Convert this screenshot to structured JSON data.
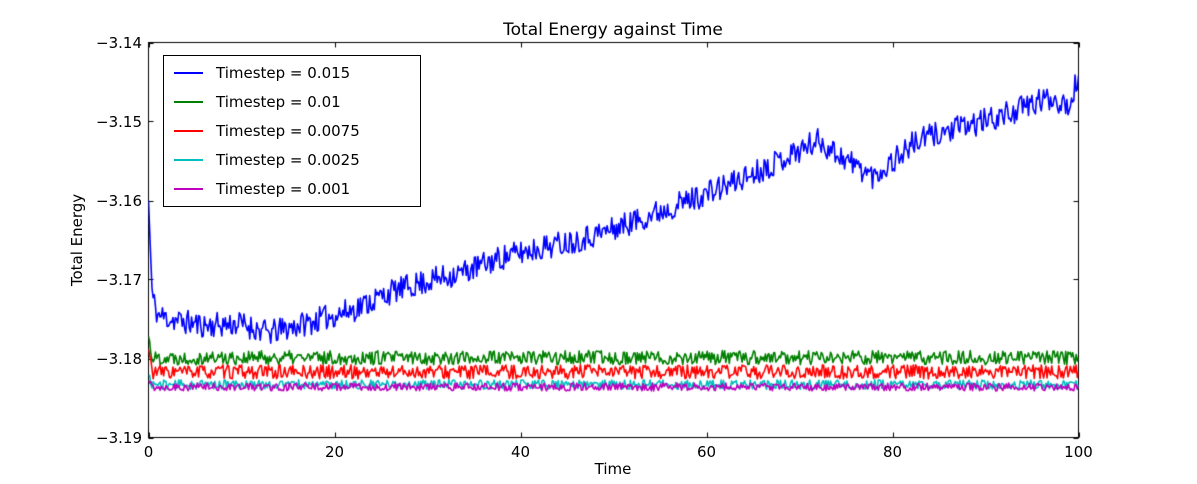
{
  "chart_data": {
    "type": "line",
    "title": "Total Energy against Time",
    "xlabel": "Time",
    "ylabel": "Total Energy",
    "xlim": [
      0,
      100
    ],
    "ylim": [
      -3.19,
      -3.14
    ],
    "xticks": [
      0,
      20,
      40,
      60,
      80,
      100
    ],
    "xtick_labels": [
      "0",
      "20",
      "40",
      "60",
      "80",
      "100"
    ],
    "yticks": [
      -3.14,
      -3.15,
      -3.16,
      -3.17,
      -3.18,
      -3.19
    ],
    "ytick_labels": [
      "−3.14",
      "−3.15",
      "−3.16",
      "−3.17",
      "−3.18",
      "−3.19"
    ],
    "grid": false,
    "legend_position": "upper left",
    "tick_direction": "in",
    "axis_color": "#000000",
    "background_color": "#ffffff",
    "series": [
      {
        "name": "Timestep = 0.015",
        "color": "#0000ff",
        "noise": 0.0016,
        "seed": 11,
        "points": 800,
        "trend": [
          [
            0,
            -3.16
          ],
          [
            0.4,
            -3.1722
          ],
          [
            1,
            -3.1745
          ],
          [
            3,
            -3.1752
          ],
          [
            6,
            -3.1758
          ],
          [
            10,
            -3.1756
          ],
          [
            13,
            -3.1768
          ],
          [
            16,
            -3.1758
          ],
          [
            18,
            -3.1752
          ],
          [
            22,
            -3.1738
          ],
          [
            26,
            -3.1716
          ],
          [
            30,
            -3.1702
          ],
          [
            34,
            -3.169
          ],
          [
            38,
            -3.1672
          ],
          [
            42,
            -3.166
          ],
          [
            46,
            -3.165
          ],
          [
            50,
            -3.1636
          ],
          [
            54,
            -3.1618
          ],
          [
            58,
            -3.16
          ],
          [
            62,
            -3.1582
          ],
          [
            66,
            -3.156
          ],
          [
            70,
            -3.1536
          ],
          [
            72,
            -3.1524
          ],
          [
            75,
            -3.1548
          ],
          [
            78,
            -3.157
          ],
          [
            80,
            -3.155
          ],
          [
            82,
            -3.153
          ],
          [
            84,
            -3.1518
          ],
          [
            88,
            -3.1506
          ],
          [
            92,
            -3.1492
          ],
          [
            95,
            -3.1478
          ],
          [
            97,
            -3.147
          ],
          [
            99,
            -3.1478
          ],
          [
            100,
            -3.1442
          ]
        ]
      },
      {
        "name": "Timestep = 0.01",
        "color": "#008000",
        "noise": 0.0009,
        "seed": 22,
        "points": 800,
        "trend": [
          [
            0,
            -3.1772
          ],
          [
            0.4,
            -3.1799
          ],
          [
            100,
            -3.1799
          ]
        ]
      },
      {
        "name": "Timestep = 0.0075",
        "color": "#ff0000",
        "noise": 0.0009,
        "seed": 33,
        "points": 800,
        "trend": [
          [
            0,
            -3.1788
          ],
          [
            0.4,
            -3.1817
          ],
          [
            100,
            -3.1817
          ]
        ]
      },
      {
        "name": "Timestep = 0.0025",
        "color": "#00bfbf",
        "noise": 0.0006,
        "seed": 44,
        "points": 800,
        "trend": [
          [
            0,
            -3.1822
          ],
          [
            0.4,
            -3.1833
          ],
          [
            100,
            -3.1833
          ]
        ]
      },
      {
        "name": "Timestep = 0.001",
        "color": "#bf00bf",
        "noise": 0.0005,
        "seed": 55,
        "points": 800,
        "trend": [
          [
            0,
            -3.1828
          ],
          [
            0.4,
            -3.1836
          ],
          [
            100,
            -3.1836
          ]
        ]
      }
    ]
  }
}
